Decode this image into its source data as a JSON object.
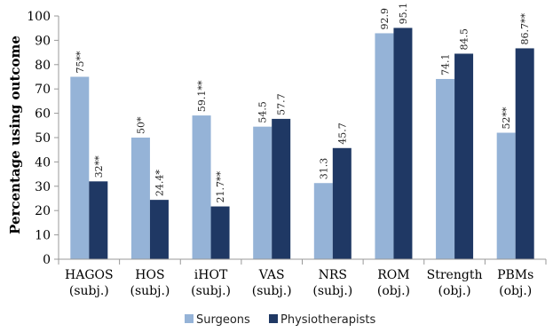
{
  "chart_data": {
    "type": "bar",
    "title": "",
    "xlabel": "",
    "ylabel": "Percentage using outcome",
    "ylim": [
      0,
      100
    ],
    "yticks": [
      0,
      10,
      20,
      30,
      40,
      50,
      60,
      70,
      80,
      90,
      100
    ],
    "grid": false,
    "legend_position": "bottom",
    "categories": [
      [
        "HAGOS",
        "(subj.)"
      ],
      [
        "HOS",
        "(subj.)"
      ],
      [
        "iHOT",
        "(subj.)"
      ],
      [
        "VAS",
        "(subj.)"
      ],
      [
        "NRS",
        "(subj.)"
      ],
      [
        "ROM",
        "(obj.)"
      ],
      [
        "Strength",
        "(obj.)"
      ],
      [
        "PBMs",
        "(obj.)"
      ]
    ],
    "series": [
      {
        "name": "Surgeons",
        "color": "#95b3d7",
        "values": [
          75,
          50,
          59.1,
          54.5,
          31.3,
          92.9,
          74.1,
          52
        ],
        "labels": [
          "75**",
          "50*",
          "59.1**",
          "54.5",
          "31.3",
          "92.9",
          "74.1",
          "52**"
        ]
      },
      {
        "name": "Physiotherapists",
        "color": "#1f3864",
        "values": [
          32,
          24.4,
          21.7,
          57.7,
          45.7,
          95.1,
          84.5,
          86.7
        ],
        "labels": [
          "32**",
          "24.4*",
          "21.7**",
          "57.7",
          "45.7",
          "95.1",
          "84.5",
          "86.7**"
        ]
      }
    ]
  }
}
